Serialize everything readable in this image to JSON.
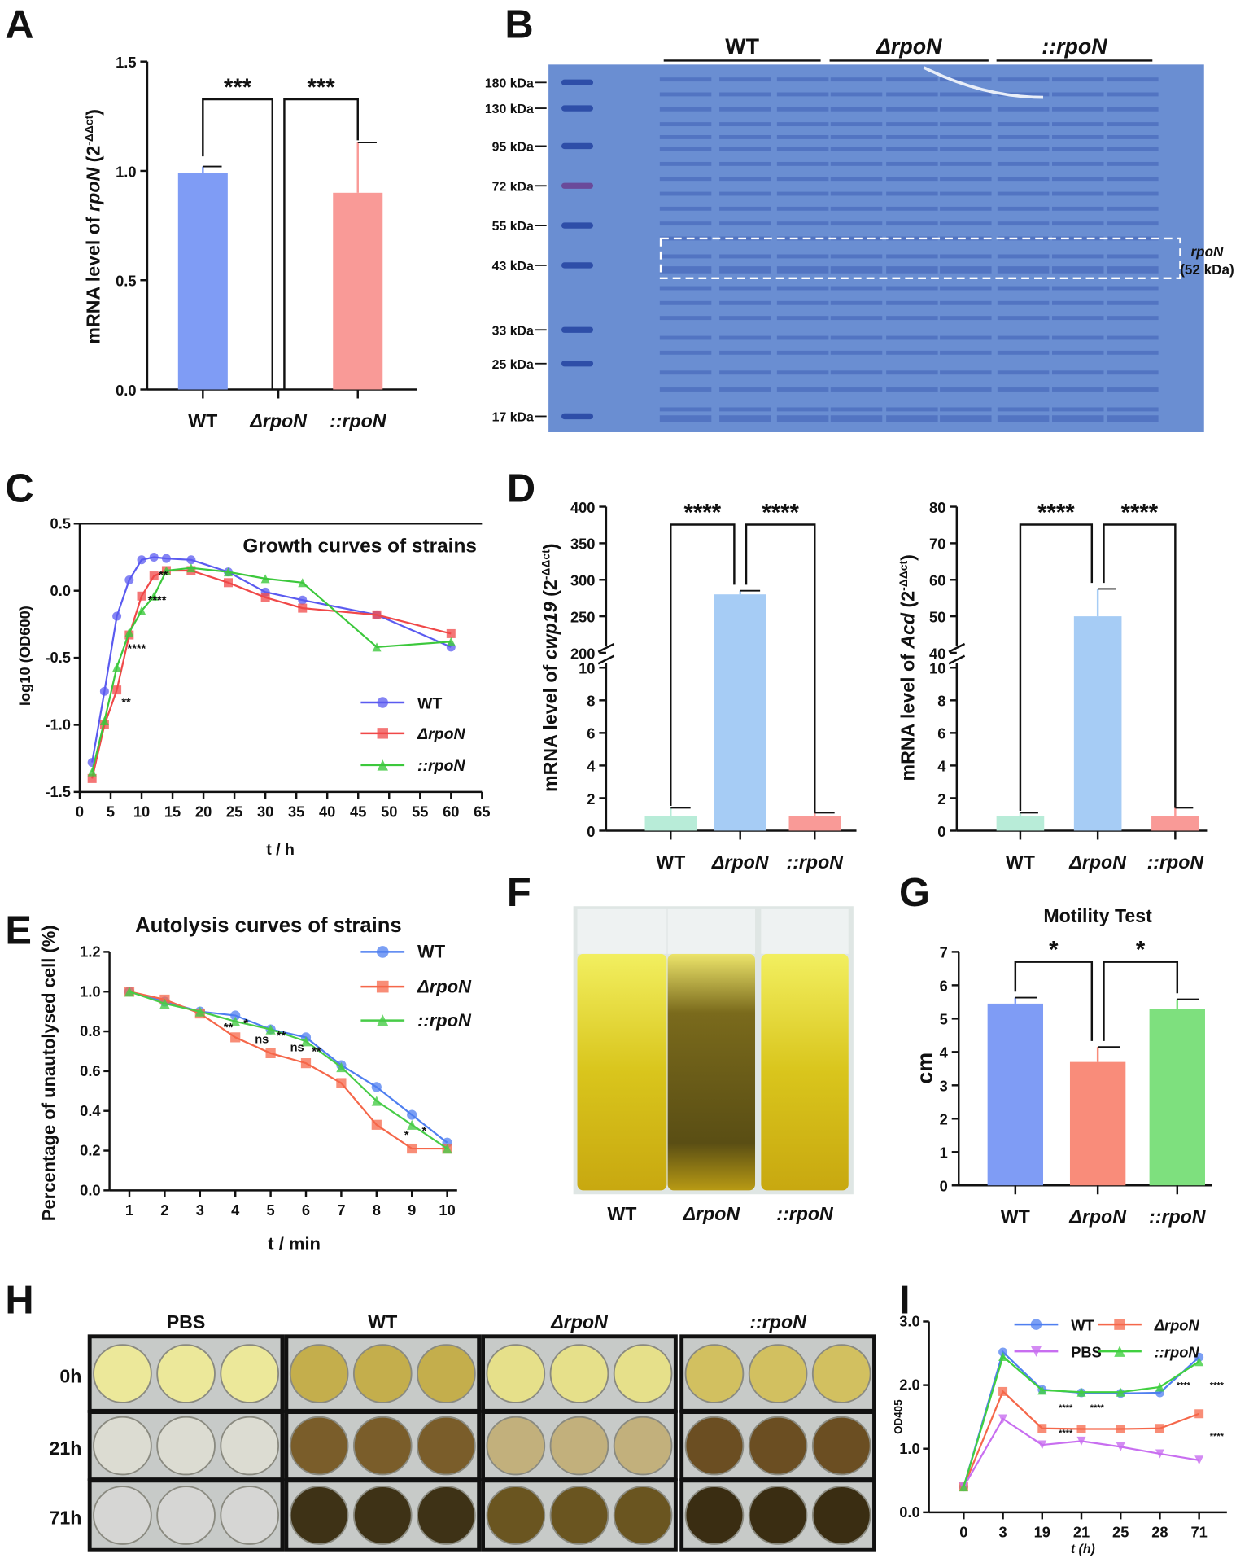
{
  "panel_letters": [
    "A",
    "B",
    "C",
    "D",
    "E",
    "F",
    "G",
    "H",
    "I"
  ],
  "gel": {
    "groups": [
      "WT",
      "ΔrpoN",
      "::rpoN"
    ],
    "markers": [
      "180 kDa",
      "130 kDa",
      "95 kDa",
      "72 kDa",
      "55 kDa",
      "43 kDa",
      "33 kDa",
      "25 kDa",
      "17 kDa"
    ],
    "band_label": "rpoN",
    "band_size": "(52 kDa)"
  },
  "photo_F": {
    "labels": [
      "WT",
      "ΔrpoN",
      "::rpoN"
    ]
  },
  "photo_H": {
    "columns": [
      "PBS",
      "WT",
      "ΔrpoN",
      "::rpoN"
    ],
    "rows": [
      "0h",
      "21h",
      "71h"
    ]
  },
  "chart_data": [
    {
      "id": "A",
      "type": "bar",
      "categories": [
        "WT",
        "ΔrpoN",
        "::rpoN"
      ],
      "values": [
        0.99,
        0,
        0.9
      ],
      "errors": [
        0.03,
        0,
        0.23
      ],
      "colors": [
        "#7f9cf5",
        "#ffffff",
        "#f99a97"
      ],
      "ylabel": "mRNA level of ",
      "ylabel_gene": "rpoN",
      "ylabel_sup": "-ΔΔct",
      "ylim": [
        0,
        1.5
      ],
      "yticks": [
        "0.0",
        "0.5",
        "1.0",
        "1.5"
      ],
      "significance": [
        {
          "from": 0,
          "to": 1,
          "label": "***"
        },
        {
          "from": 1,
          "to": 2,
          "label": "***"
        }
      ]
    },
    {
      "id": "C",
      "type": "line",
      "title": "Growth curves of strains",
      "xlabel": "t / h",
      "ylabel": "log10 (OD600)",
      "xlim": [
        0,
        65
      ],
      "ylim": [
        -1.5,
        0.5
      ],
      "xticks": [
        0,
        5,
        10,
        15,
        20,
        25,
        30,
        35,
        40,
        45,
        50,
        55,
        60,
        65
      ],
      "yticks": [
        "-1.5",
        "-1.0",
        "-0.5",
        "0.0",
        "0.5"
      ],
      "x": [
        2,
        4,
        6,
        8,
        10,
        12,
        14,
        18,
        24,
        30,
        36,
        48,
        60
      ],
      "series": [
        {
          "name": "WT",
          "color": "#5b5bf0",
          "marker": "circle",
          "values": [
            -1.28,
            -0.75,
            -0.19,
            0.08,
            0.23,
            0.25,
            0.24,
            0.23,
            0.14,
            -0.01,
            -0.07,
            -0.18,
            -0.42
          ]
        },
        {
          "name": "ΔrpoN",
          "color": "#f04848",
          "marker": "square",
          "values": [
            -1.4,
            -1.0,
            -0.74,
            -0.33,
            -0.04,
            0.11,
            0.15,
            0.15,
            0.06,
            -0.05,
            -0.13,
            -0.18,
            -0.32
          ]
        },
        {
          "name": "::rpoN",
          "color": "#3cc83c",
          "marker": "triangle",
          "values": [
            -1.35,
            -0.97,
            -0.57,
            -0.31,
            -0.15,
            -0.04,
            0.15,
            0.17,
            0.14,
            0.09,
            0.06,
            -0.42,
            -0.38
          ]
        }
      ],
      "annotations": [
        {
          "x": 7.5,
          "y": -0.86,
          "text": "**"
        },
        {
          "x": 9.2,
          "y": -0.46,
          "text": "****"
        },
        {
          "x": 12.5,
          "y": -0.1,
          "text": "****"
        },
        {
          "x": 13.5,
          "y": 0.09,
          "text": "**"
        }
      ]
    },
    {
      "id": "D1",
      "type": "bar",
      "categories": [
        "WT",
        "ΔrpoN",
        "::rpoN"
      ],
      "values": [
        0.9,
        280,
        0.9
      ],
      "errors": [
        0.5,
        5,
        0.2
      ],
      "colors": [
        "#b8ecd8",
        "#a6ccf5",
        "#f99a97"
      ],
      "ylabel": "mRNA level of ",
      "ylabel_gene": "cwp19",
      "ylabel_sup": "-ΔΔct",
      "yticks_low": [
        "0",
        "2",
        "4",
        "6",
        "8",
        "10"
      ],
      "yticks_high": [
        "200",
        "250",
        "300",
        "350",
        "400"
      ],
      "break": [
        10,
        200
      ],
      "ymax": 400,
      "significance": [
        {
          "from": 0,
          "to": 1,
          "label": "****"
        },
        {
          "from": 1,
          "to": 2,
          "label": "****"
        }
      ]
    },
    {
      "id": "D2",
      "type": "bar",
      "categories": [
        "WT",
        "ΔrpoN",
        "::rpoN"
      ],
      "values": [
        0.9,
        50,
        0.9
      ],
      "errors": [
        0.2,
        7.5,
        0.5
      ],
      "colors": [
        "#b8ecd8",
        "#a6ccf5",
        "#f99a97"
      ],
      "ylabel": "mRNA level of ",
      "ylabel_gene": "Acd",
      "ylabel_sup": "-ΔΔct",
      "yticks_low": [
        "0",
        "2",
        "4",
        "6",
        "8",
        "10"
      ],
      "yticks_high": [
        "40",
        "50",
        "60",
        "70",
        "80"
      ],
      "break": [
        10,
        40
      ],
      "ymax": 80,
      "significance": [
        {
          "from": 0,
          "to": 1,
          "label": "****"
        },
        {
          "from": 1,
          "to": 2,
          "label": "****"
        }
      ]
    },
    {
      "id": "E",
      "type": "line",
      "title": "Autolysis curves of strains",
      "xlabel": "t / min",
      "ylabel": "Percentage of unautolysed cell  (%)",
      "xlim": [
        1,
        10
      ],
      "ylim": [
        0,
        1.2
      ],
      "xticks": [
        1,
        2,
        3,
        4,
        5,
        6,
        7,
        8,
        9,
        10
      ],
      "yticks": [
        "0.0",
        "0.2",
        "0.4",
        "0.6",
        "0.8",
        "1.0",
        "1.2"
      ],
      "x": [
        1,
        2,
        3,
        4,
        5,
        6,
        7,
        8,
        9,
        10
      ],
      "series": [
        {
          "name": "WT",
          "color": "#4f7ff0",
          "marker": "circle",
          "values": [
            1.0,
            0.95,
            0.9,
            0.88,
            0.81,
            0.77,
            0.63,
            0.52,
            0.38,
            0.24
          ]
        },
        {
          "name": "ΔrpoN",
          "color": "#f5674a",
          "marker": "square",
          "values": [
            1.0,
            0.96,
            0.89,
            0.77,
            0.69,
            0.64,
            0.54,
            0.33,
            0.21,
            0.21
          ]
        },
        {
          "name": "::rpoN",
          "color": "#48cc48",
          "marker": "triangle",
          "values": [
            1.0,
            0.94,
            0.9,
            0.85,
            0.81,
            0.75,
            0.62,
            0.45,
            0.33,
            0.21
          ]
        }
      ],
      "annotations": [
        {
          "x": 3.8,
          "y": 0.8,
          "text": "**"
        },
        {
          "x": 4.3,
          "y": 0.82,
          "text": "*"
        },
        {
          "x": 4.75,
          "y": 0.74,
          "text": "ns"
        },
        {
          "x": 5.3,
          "y": 0.76,
          "text": "**"
        },
        {
          "x": 5.75,
          "y": 0.7,
          "text": "ns"
        },
        {
          "x": 6.3,
          "y": 0.68,
          "text": "**"
        },
        {
          "x": 8.85,
          "y": 0.26,
          "text": "*"
        },
        {
          "x": 9.35,
          "y": 0.28,
          "text": "*"
        }
      ]
    },
    {
      "id": "G",
      "type": "bar",
      "title": "Motility Test",
      "categories": [
        "WT",
        "ΔrpoN",
        "::rpoN"
      ],
      "values": [
        5.45,
        3.7,
        5.3
      ],
      "errors": [
        0.18,
        0.45,
        0.28
      ],
      "colors": [
        "#7f9cf5",
        "#f98c7a",
        "#7ee07e"
      ],
      "ylabel": "cm",
      "ylim": [
        0,
        7
      ],
      "yticks": [
        "0",
        "1",
        "2",
        "3",
        "4",
        "5",
        "6",
        "7"
      ],
      "significance": [
        {
          "from": 0,
          "to": 1,
          "label": "*"
        },
        {
          "from": 1,
          "to": 2,
          "label": "*"
        }
      ]
    },
    {
      "id": "I",
      "type": "line",
      "xlabel": "t (h)",
      "ylabel": "OD405",
      "categories": [
        "0",
        "3",
        "19",
        "21",
        "25",
        "28",
        "71"
      ],
      "ylim": [
        0,
        3
      ],
      "yticks": [
        "0.0",
        "1.0",
        "2.0",
        "3.0"
      ],
      "series": [
        {
          "name": "WT",
          "color": "#4f7ff0",
          "marker": "circle",
          "values": [
            0.4,
            2.52,
            1.93,
            1.88,
            1.87,
            1.88,
            2.44
          ]
        },
        {
          "name": "ΔrpoN",
          "color": "#f5674a",
          "marker": "square",
          "values": [
            0.4,
            1.9,
            1.32,
            1.31,
            1.31,
            1.32,
            1.55
          ]
        },
        {
          "name": "PBS",
          "color": "#c86ef0",
          "marker": "triangle-down",
          "values": [
            0.4,
            1.47,
            1.06,
            1.12,
            1.03,
            0.92,
            0.82
          ]
        },
        {
          "name": "::rpoN",
          "color": "#40d040",
          "marker": "triangle",
          "values": [
            0.4,
            2.45,
            1.92,
            1.89,
            1.89,
            1.97,
            2.37
          ]
        }
      ],
      "annotations": [
        {
          "x": 2.6,
          "y": 1.6,
          "text": "****"
        },
        {
          "x": 3.4,
          "y": 1.6,
          "text": "****"
        },
        {
          "x": 2.6,
          "y": 1.2,
          "text": "****"
        },
        {
          "x": 5.6,
          "y": 1.95,
          "text": "****"
        },
        {
          "x": 6.45,
          "y": 1.95,
          "text": "****"
        },
        {
          "x": 6.45,
          "y": 1.15,
          "text": "****"
        }
      ]
    }
  ]
}
